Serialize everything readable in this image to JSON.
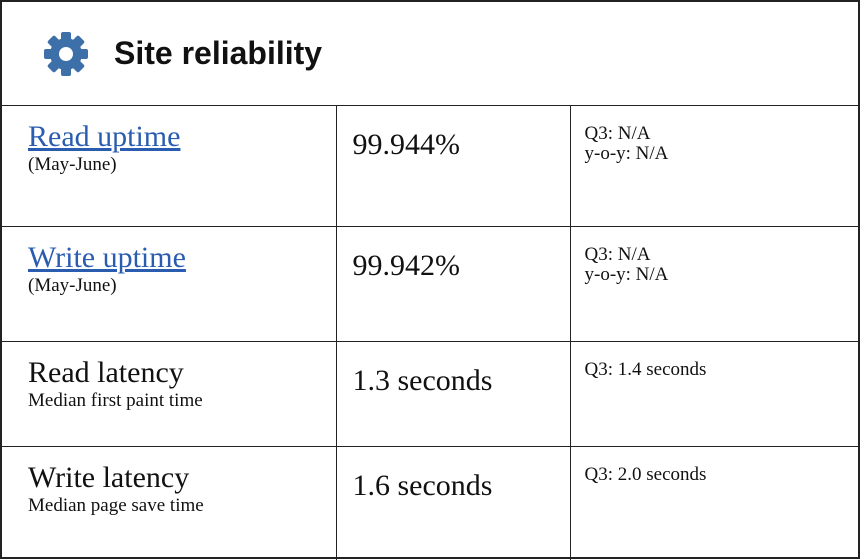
{
  "header": {
    "title": "Site reliability"
  },
  "table": {
    "rows": [
      {
        "label": "Read uptime",
        "sublabel": "(May-June)",
        "value": "99.944%",
        "notes": [
          "Q3: N/A",
          "y-o-y: N/A"
        ],
        "link": true
      },
      {
        "label": "Write uptime",
        "sublabel": "(May-June)",
        "value": "99.942%",
        "notes": [
          "Q3: N/A",
          "y-o-y: N/A"
        ],
        "link": true
      },
      {
        "label": "Read latency",
        "sublabel": "Median first paint time",
        "value": "1.3 seconds",
        "notes": [
          "Q3: 1.4 seconds"
        ],
        "link": false
      },
      {
        "label": "Write latency",
        "sublabel": "Median page save time",
        "value": "1.6 seconds",
        "notes": [
          "Q3: 2.0 seconds"
        ],
        "link": false
      }
    ]
  }
}
